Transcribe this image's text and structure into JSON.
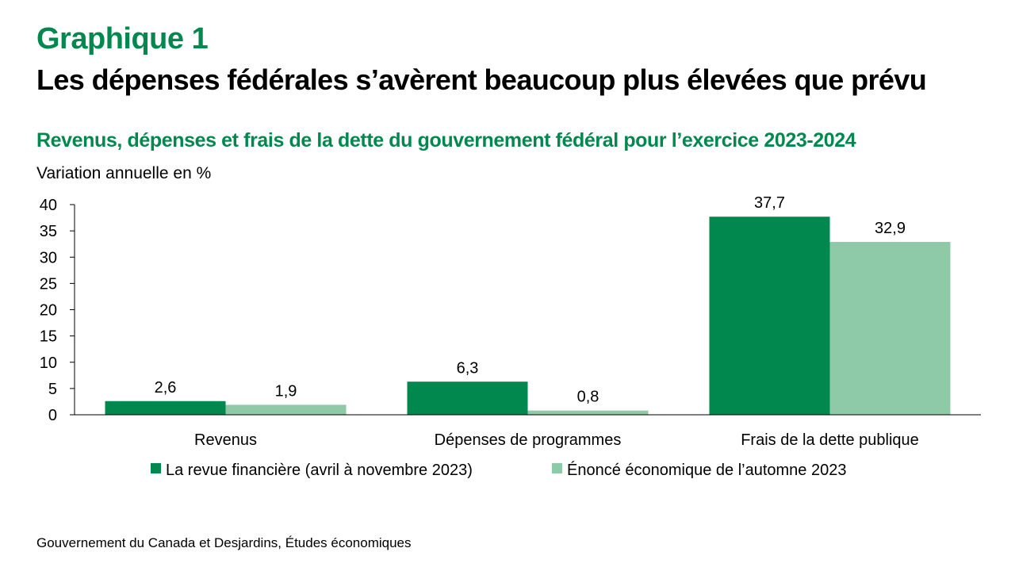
{
  "header": {
    "figure_label": "Graphique 1",
    "title": "Les dépenses fédérales s’avèrent beaucoup plus élevées que prévu",
    "subtitle": "Revenus, dépenses et frais de la dette du gouvernement fédéral pour l’exercice 2023-2024",
    "y_unit": "Variation annuelle en %"
  },
  "footer": {
    "source": "Gouvernement  du Canada et Desjardins, Études économiques"
  },
  "colors": {
    "accent": "#00884F",
    "series_dark": "#00884F",
    "series_light": "#8FCAA8",
    "axis": "#000000"
  },
  "chart_data": {
    "type": "bar",
    "title": "Revenus, dépenses et frais de la dette du gouvernement fédéral pour l’exercice 2023-2024",
    "xlabel": "",
    "ylabel": "Variation annuelle en %",
    "ylim": [
      0,
      40
    ],
    "yticks": [
      0,
      5,
      10,
      15,
      20,
      25,
      30,
      35,
      40
    ],
    "grid": false,
    "legend_position": "bottom",
    "decimal_separator": ",",
    "categories": [
      "Revenus",
      "Dépenses de programmes",
      "Frais de la dette publique"
    ],
    "series": [
      {
        "name": "La revue financière (avril à novembre 2023)",
        "color": "#00884F",
        "values": [
          2.6,
          6.3,
          37.7
        ]
      },
      {
        "name": "Énoncé économique de l’automne 2023",
        "color": "#8FCAA8",
        "values": [
          1.9,
          0.8,
          32.9
        ]
      }
    ]
  }
}
